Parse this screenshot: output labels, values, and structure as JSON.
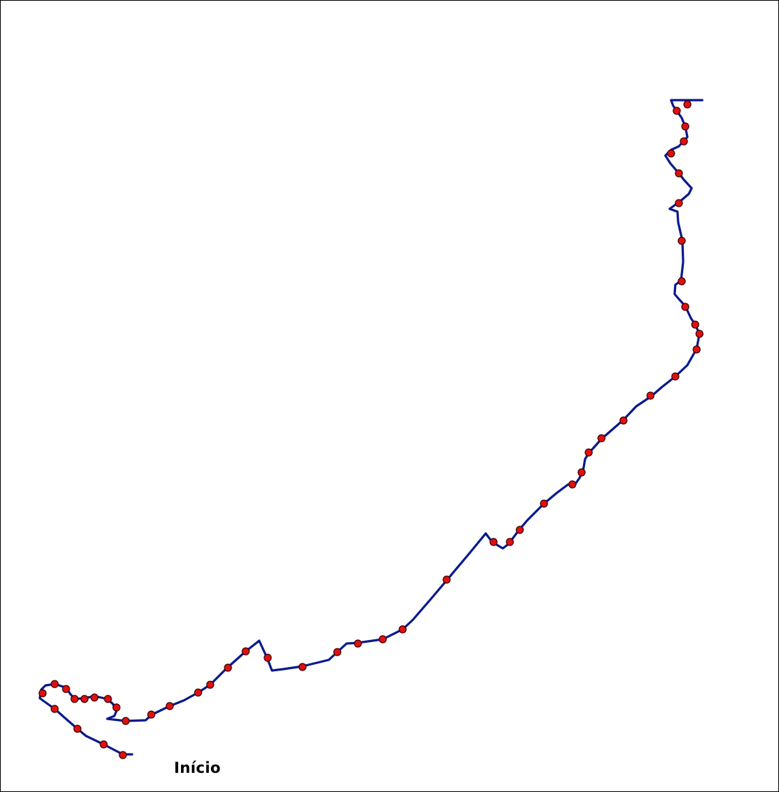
{
  "map": {
    "start_label": "Início",
    "track_color": "#0a1a8c",
    "point_color": "#e01010",
    "point_outline_color": "#3a0000"
  }
}
